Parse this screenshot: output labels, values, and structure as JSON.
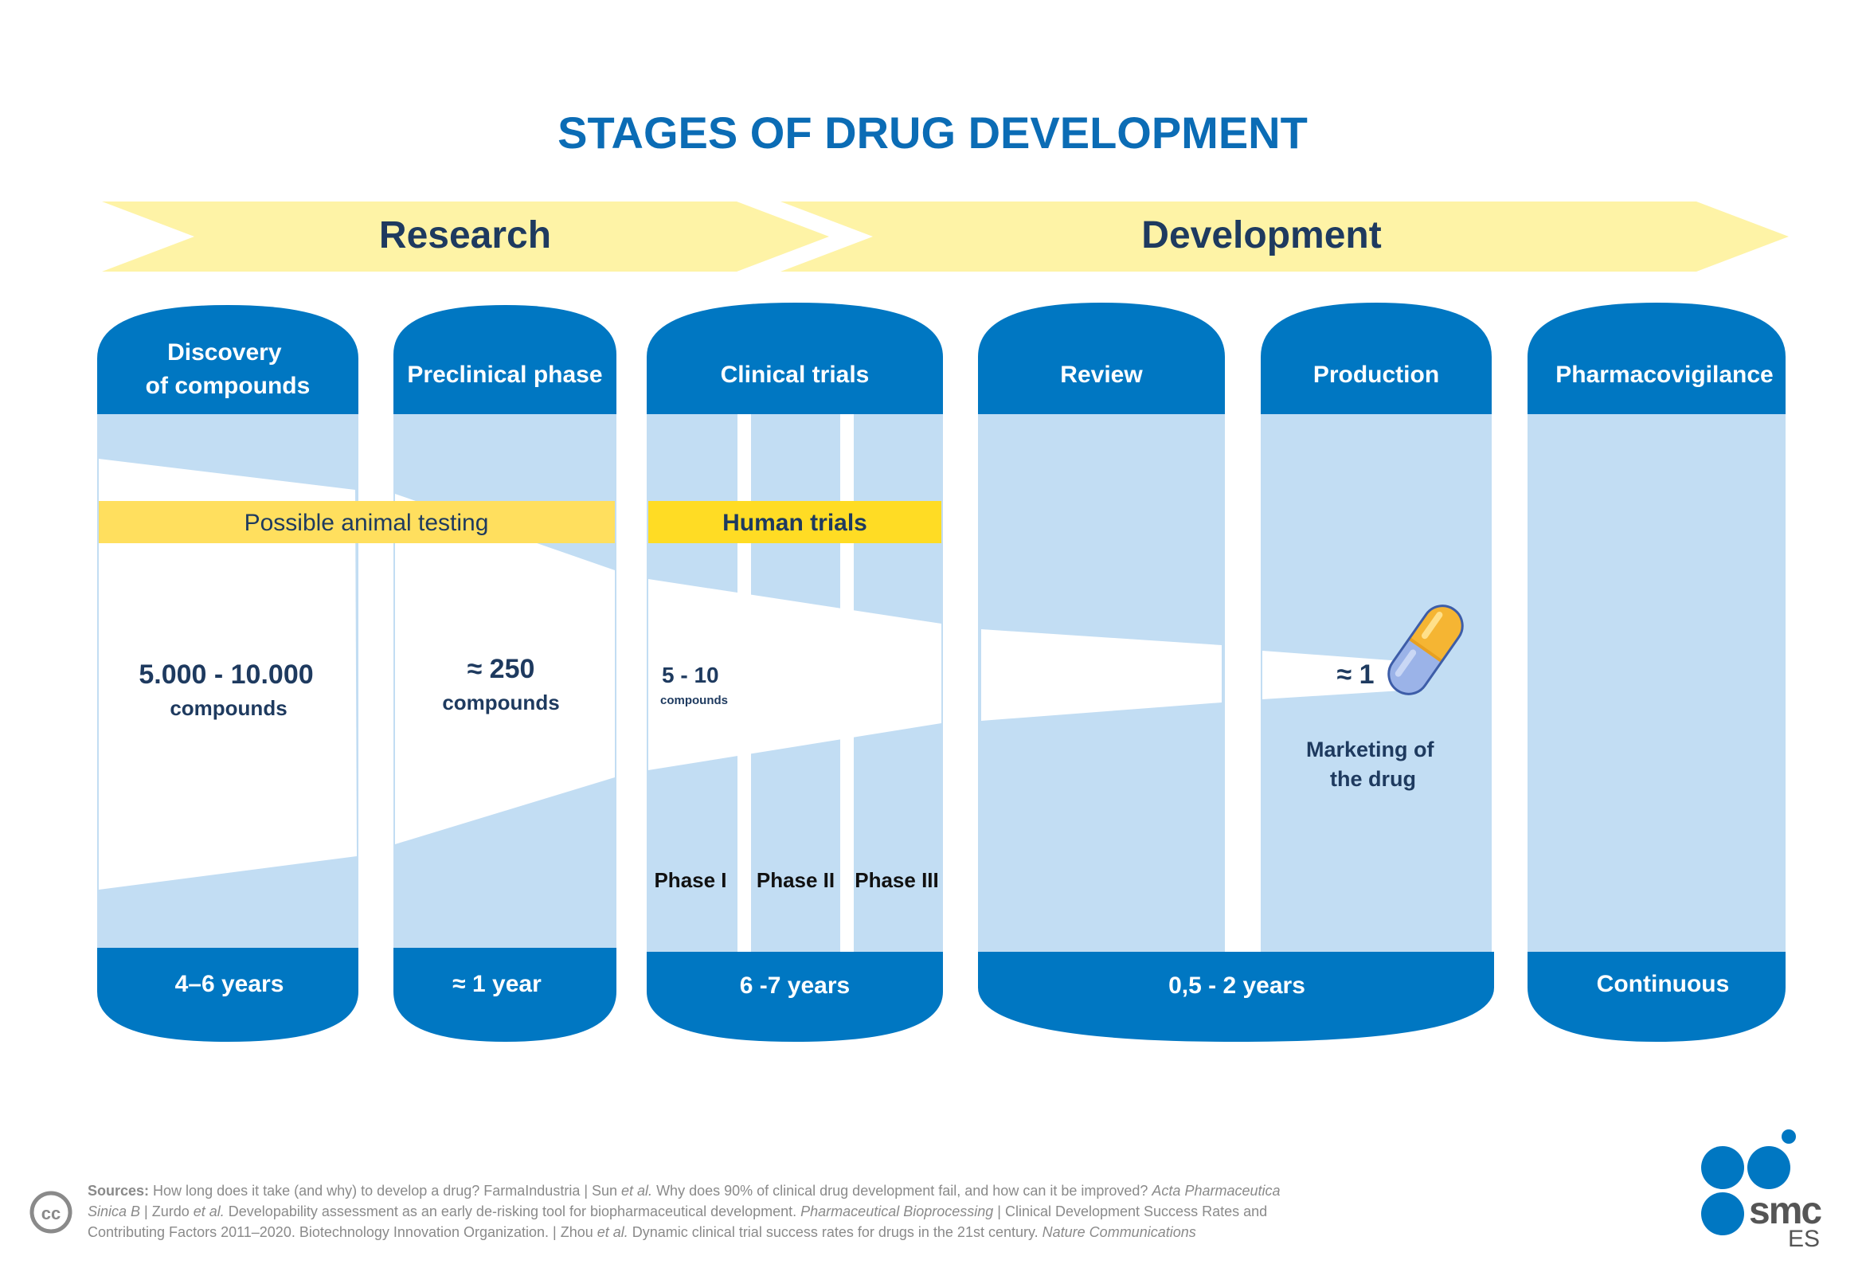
{
  "title": "STAGES OF DRUG DEVELOPMENT",
  "bands": {
    "research": "Research",
    "development": "Development"
  },
  "stages": {
    "discovery": {
      "line1": "Discovery",
      "line2": "of compounds",
      "duration": "4–6 years",
      "count": "5.000 - 10.000",
      "unit": "compounds"
    },
    "preclinical": {
      "label": "Preclinical phase",
      "duration": "≈ 1 year",
      "count": "≈ 250",
      "unit": "compounds"
    },
    "clinical": {
      "label": "Clinical trials",
      "duration": "6 -7 years",
      "count": "5 - 10",
      "unit": "compounds"
    },
    "review": {
      "label": "Review"
    },
    "production": {
      "label": "Production",
      "count": "≈ 1",
      "marketing_line1": "Marketing of",
      "marketing_line2": "the drug"
    },
    "review_production": {
      "duration": "0,5 - 2 years"
    },
    "pharmacovigilance": {
      "label": "Pharmacovigilance",
      "duration": "Continuous"
    }
  },
  "bars": {
    "animal": "Possible animal testing",
    "human": "Human trials"
  },
  "phases": [
    "Phase I",
    "Phase II",
    "Phase III"
  ],
  "sources": {
    "label": "Sources:",
    "line1_a": " How long does it take (and why) to develop a drug? FarmaIndustria | Sun ",
    "line1_etal": "et al.",
    "line1_b": " Why does 90% of clinical drug development fail, and how can it be improved? ",
    "line1_journal": "Acta Pharmaceutica",
    "line2_journal": "Sinica B",
    "line2_a": " | Zurdo ",
    "line2_etal": "et al.",
    "line2_b": " Developability assessment as an early de-risking tool for biopharmaceutical development. ",
    "line2_journal2": "Pharmaceutical Bioprocessing",
    "line2_c": " | Clinical Development Success Rates and",
    "line3_a": "Contributing Factors 2011–2020. Biotechnology Innovation Organization.  |  Zhou ",
    "line3_etal": "et al.",
    "line3_b": " Dynamic clinical trial success rates for drugs in the 21st century. ",
    "line3_journal": "Nature Communications"
  },
  "license": "cc",
  "logo": {
    "text": "smc",
    "sub": "ES"
  },
  "colors": {
    "title": "#0b6cb5",
    "stage_blue": "#0077c2",
    "panel_light": "#c2ddf3",
    "band_yellow": "#fef3a6",
    "band_text": "#1e3a5f",
    "animal_bar": "#ffdf5e",
    "human_bar": "#ffdc24",
    "text_navy": "#1e3a5f"
  }
}
